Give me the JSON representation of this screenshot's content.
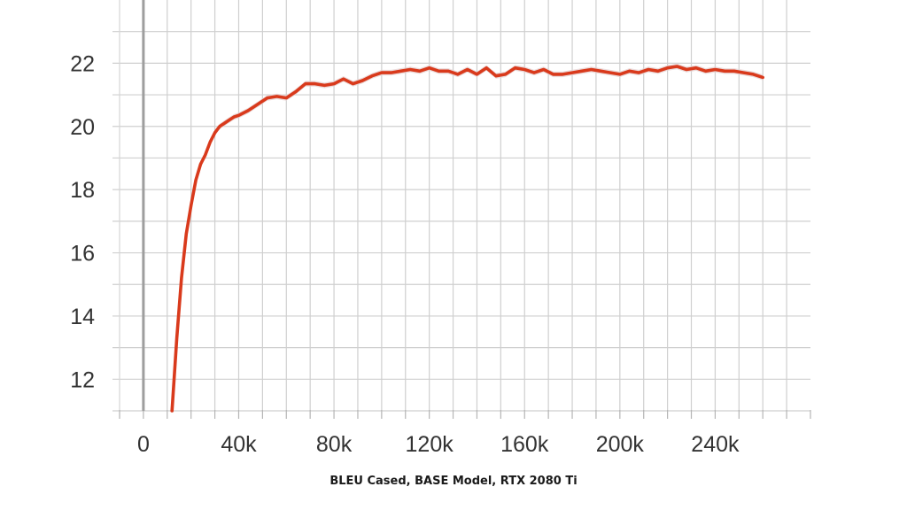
{
  "caption": "BLEU Cased, BASE Model, RTX 2080 Ti",
  "chart_data": {
    "type": "line",
    "title": "",
    "xlabel": "",
    "ylabel": "",
    "xlim": [
      -10000,
      280000
    ],
    "ylim": [
      11,
      24
    ],
    "xticks": [
      0,
      40000,
      80000,
      120000,
      160000,
      200000,
      240000
    ],
    "xtick_labels": [
      "0",
      "40k",
      "80k",
      "120k",
      "160k",
      "200k",
      "240k"
    ],
    "yticks": [
      12,
      14,
      16,
      18,
      20,
      22
    ],
    "ytick_labels": [
      "12",
      "14",
      "16",
      "18",
      "20",
      "22"
    ],
    "grid": true,
    "legend": "none",
    "series": [
      {
        "color": "#d93a1c",
        "band_color": "#e6d2d2",
        "x": [
          12000,
          14000,
          16000,
          18000,
          20000,
          22000,
          24000,
          26000,
          28000,
          30000,
          32000,
          34000,
          36000,
          38000,
          40000,
          44000,
          48000,
          52000,
          56000,
          60000,
          64000,
          68000,
          72000,
          76000,
          80000,
          84000,
          88000,
          92000,
          96000,
          100000,
          104000,
          108000,
          112000,
          116000,
          120000,
          124000,
          128000,
          132000,
          136000,
          140000,
          144000,
          148000,
          152000,
          156000,
          160000,
          164000,
          168000,
          172000,
          176000,
          180000,
          184000,
          188000,
          192000,
          196000,
          200000,
          204000,
          208000,
          212000,
          216000,
          220000,
          224000,
          228000,
          232000,
          236000,
          240000,
          244000,
          248000,
          252000,
          256000,
          260000
        ],
        "y": [
          11.0,
          13.3,
          15.2,
          16.6,
          17.5,
          18.3,
          18.8,
          19.1,
          19.5,
          19.8,
          20.0,
          20.1,
          20.2,
          20.3,
          20.35,
          20.5,
          20.7,
          20.9,
          20.95,
          20.9,
          21.1,
          21.35,
          21.35,
          21.3,
          21.35,
          21.5,
          21.35,
          21.45,
          21.6,
          21.7,
          21.7,
          21.75,
          21.8,
          21.75,
          21.85,
          21.75,
          21.75,
          21.65,
          21.8,
          21.65,
          21.85,
          21.6,
          21.65,
          21.85,
          21.8,
          21.7,
          21.8,
          21.65,
          21.65,
          21.7,
          21.75,
          21.8,
          21.75,
          21.7,
          21.65,
          21.75,
          21.7,
          21.8,
          21.75,
          21.85,
          21.9,
          21.8,
          21.85,
          21.75,
          21.8,
          21.75,
          21.75,
          21.7,
          21.65,
          21.55
        ]
      }
    ]
  }
}
